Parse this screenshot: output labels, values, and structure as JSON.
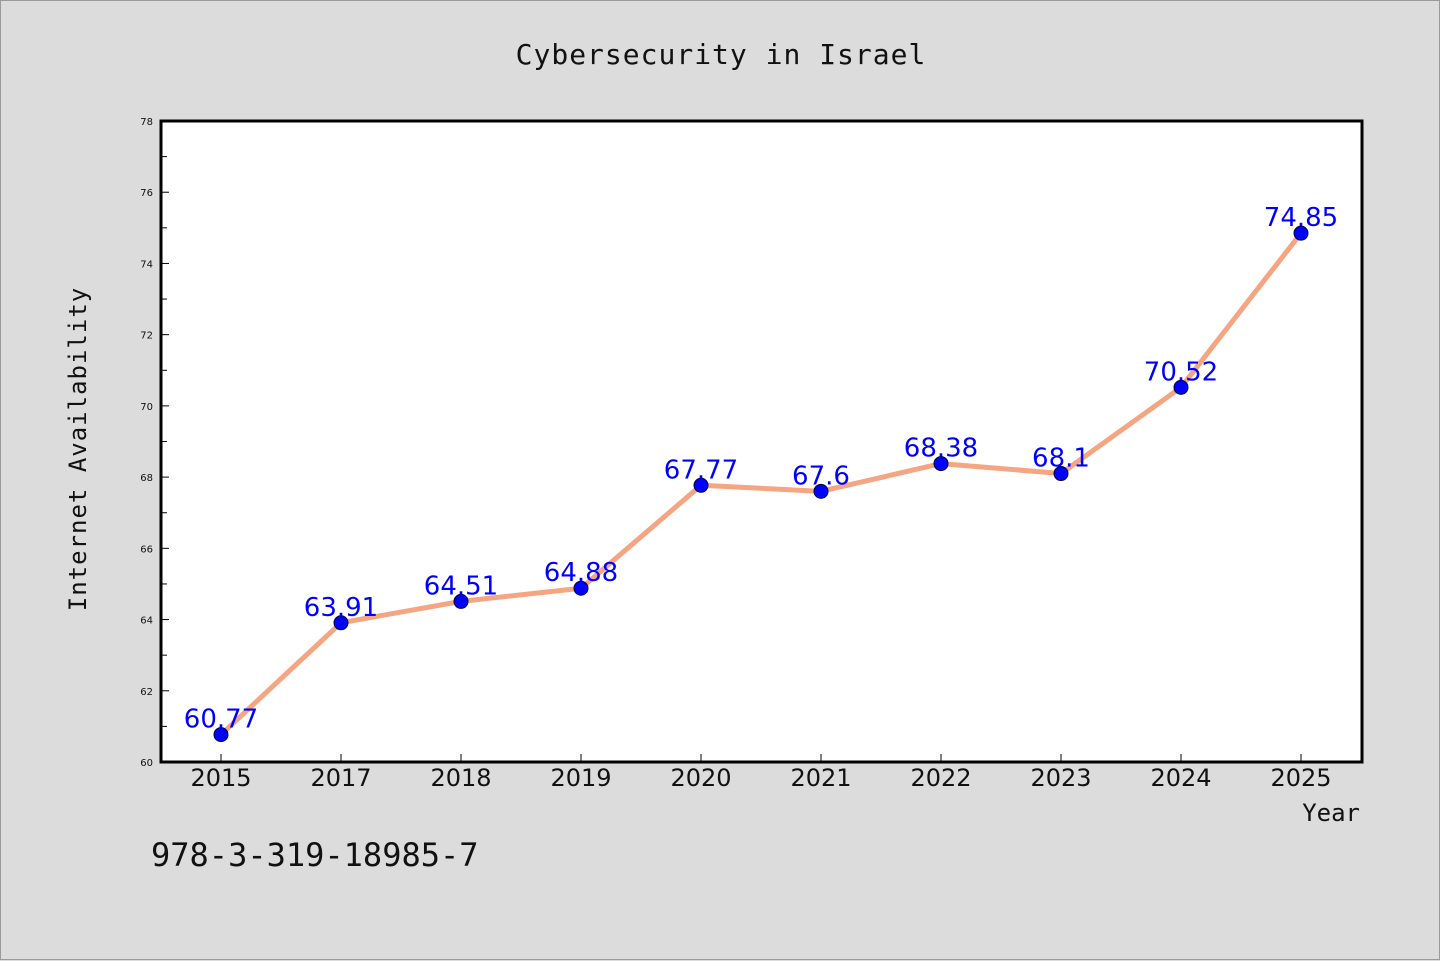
{
  "chart_data": {
    "type": "line",
    "title": "Cybersecurity in Israel",
    "xlabel": "Year",
    "ylabel": "Internet Availability",
    "categories": [
      "2015",
      "2017",
      "2018",
      "2019",
      "2020",
      "2021",
      "2022",
      "2023",
      "2024",
      "2025"
    ],
    "series": [
      {
        "values": [
          60.77,
          63.91,
          64.51,
          64.88,
          67.77,
          67.6,
          68.38,
          68.1,
          70.52,
          74.85
        ],
        "data_labels": [
          "60.77",
          "63.91",
          "64.51",
          "64.88",
          "67.77",
          "67.6",
          "68.38",
          "68.1",
          "70.52",
          "74.85"
        ],
        "line_color": "#f4a582",
        "marker_color": "#0000ff"
      }
    ],
    "ylim": [
      60,
      78
    ],
    "yticks": [
      "60",
      "62",
      "64",
      "66",
      "68",
      "70",
      "72",
      "74",
      "76",
      "78"
    ],
    "grid": false,
    "legend": "none"
  },
  "footer": {
    "text": "978-3-319-18985-7"
  },
  "colors": {
    "background": "#dcdcdc",
    "plot_area": "#ffffff",
    "line": "#f4a582",
    "marker": "#0000ff",
    "data_label": "#0000ff"
  }
}
